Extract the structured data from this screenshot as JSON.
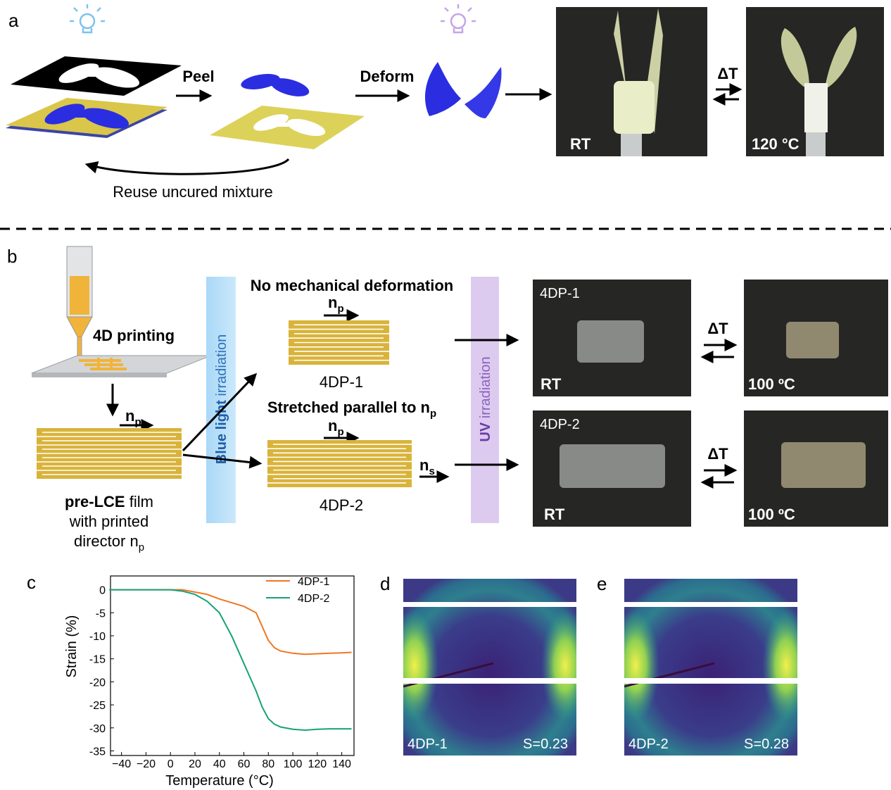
{
  "panel_a": {
    "label": "a",
    "step_peel": "Peel",
    "step_deform": "Deform",
    "stimulus": "ΔT",
    "photo_before": "RT",
    "photo_after": "120 °C",
    "loop_caption": "Reuse uncured mixture"
  },
  "panel_b": {
    "label": "b",
    "printing_label": "4D printing",
    "film_director": {
      "symbol": "n",
      "subscript": "p"
    },
    "film_caption": {
      "bold": "pre-LCE",
      "line1_rest": " film",
      "line2": "with printed",
      "line3": "director n",
      "line3_subscript": "p"
    },
    "blue_light": {
      "bold": "Blue light",
      "rest": " irradiation"
    },
    "uv": {
      "bold": "UV",
      "rest": " irradiation"
    },
    "route_1": {
      "title": "No mechanical deformation",
      "director": {
        "symbol": "n",
        "subscript": "p"
      },
      "name": "4DP-1"
    },
    "route_2": {
      "title": "Stretched parallel to n",
      "title_subscript": "p",
      "director": {
        "symbol": "n",
        "subscript": "p"
      },
      "stretch": {
        "symbol": "n",
        "subscript": "s"
      },
      "name": "4DP-2"
    },
    "photos": [
      {
        "sample": "4DP-1",
        "before": "RT",
        "after": "100 ºC",
        "stimulus": "ΔT"
      },
      {
        "sample": "4DP-2",
        "before": "RT",
        "after": "100 ºC",
        "stimulus": "ΔT"
      }
    ]
  },
  "chart_data": {
    "type": "line",
    "panel_label": "c",
    "xlabel": "Temperature (°C)",
    "ylabel": "Strain (%)",
    "x": [
      -50,
      -40,
      -30,
      -20,
      -10,
      0,
      10,
      20,
      30,
      40,
      50,
      60,
      70,
      75,
      80,
      85,
      90,
      100,
      110,
      120,
      130,
      140,
      148
    ],
    "series": [
      {
        "name": "4DP-1",
        "color": "#f07622",
        "values": [
          0,
          0,
          0,
          0,
          0,
          0,
          0,
          -0.5,
          -1,
          -2,
          -2.8,
          -3.6,
          -5,
          -8,
          -11,
          -12.6,
          -13.3,
          -13.8,
          -14,
          -13.9,
          -13.8,
          -13.7,
          -13.6
        ]
      },
      {
        "name": "4DP-2",
        "color": "#17a27a",
        "values": [
          0,
          0,
          0,
          0,
          0,
          0,
          -0.3,
          -1,
          -2.5,
          -5,
          -10,
          -16,
          -22,
          -25.5,
          -28,
          -29.2,
          -29.8,
          -30.3,
          -30.5,
          -30.3,
          -30.2,
          -30.2,
          -30.2
        ]
      }
    ],
    "xlim": [
      -49,
      150
    ],
    "ylim": [
      -36,
      3
    ],
    "xticks": [
      {
        "value": -40,
        "label": "−40"
      },
      {
        "value": -20,
        "label": "−20"
      },
      0,
      20,
      40,
      60,
      80,
      100,
      120,
      140
    ],
    "yticks": [
      0,
      -5,
      -10,
      -15,
      -20,
      -25,
      -30,
      -35
    ],
    "grid": false,
    "legend": "upper right"
  },
  "panel_d": {
    "label": "d",
    "sample": "4DP-1",
    "order_parameter": "S=0.23"
  },
  "panel_e": {
    "label": "e",
    "sample": "4DP-2",
    "order_parameter": "S=0.28"
  }
}
